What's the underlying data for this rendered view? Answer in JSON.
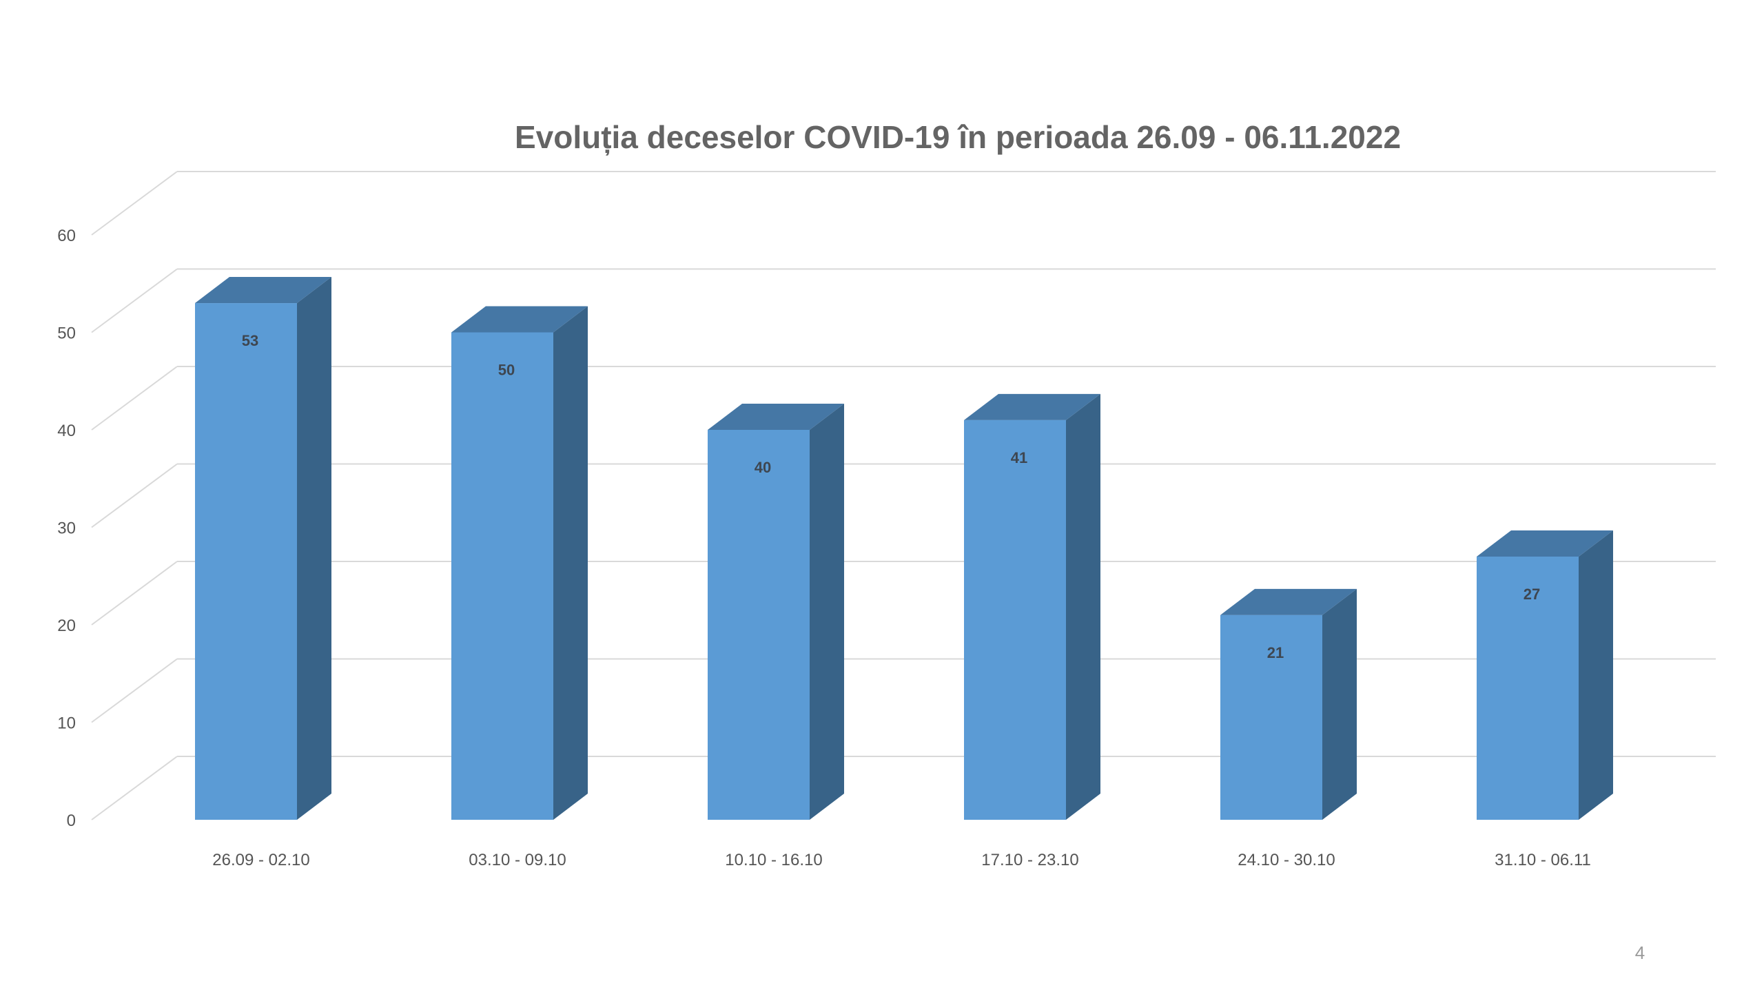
{
  "page": {
    "number": "4"
  },
  "chart_data": {
    "type": "bar",
    "title": "Evoluția deceselor COVID-19 în perioada 26.09 - 06.11.2022",
    "xlabel": "",
    "ylabel": "",
    "categories": [
      "26.09 - 02.10",
      "03.10 - 09.10",
      "10.10 - 16.10",
      "17.10 - 23.10",
      "24.10 - 30.10",
      "31.10 - 06.11"
    ],
    "values": [
      53,
      50,
      40,
      41,
      21,
      27
    ],
    "ylim": [
      0,
      60
    ],
    "yticks": [
      0,
      10,
      20,
      30,
      40,
      50,
      60
    ],
    "grid": true,
    "legend": "none",
    "style": "3d-column",
    "colors": {
      "bar_front": "#5b9bd5",
      "bar_side": "#386388",
      "bar_top": "#4577a5",
      "grid": "#d9d9d9"
    }
  }
}
